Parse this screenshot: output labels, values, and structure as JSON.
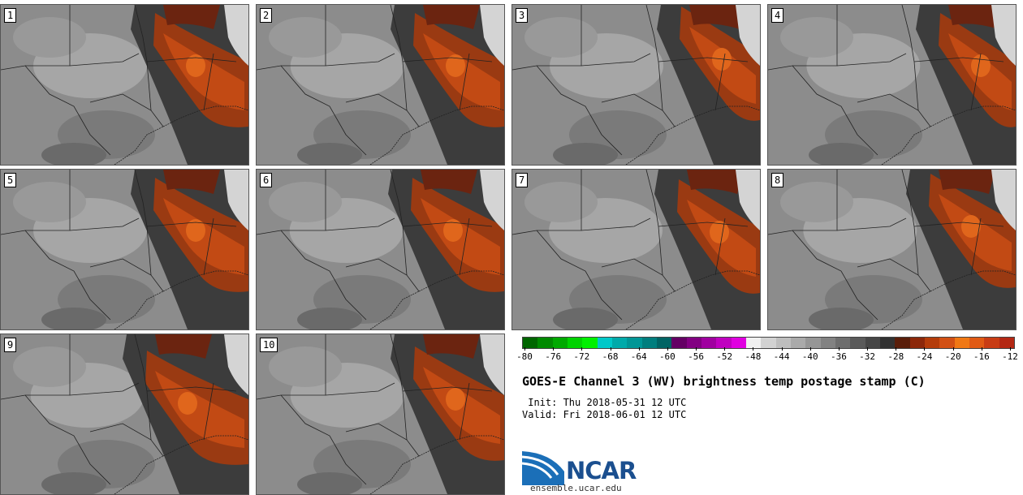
{
  "panels": [
    "1",
    "2",
    "3",
    "4",
    "5",
    "6",
    "7",
    "8",
    "9",
    "10"
  ],
  "colorbar": {
    "colors": [
      "#006600",
      "#008a00",
      "#00aa00",
      "#00d200",
      "#00f000",
      "#00c8c8",
      "#00aaaa",
      "#009696",
      "#007e7e",
      "#006464",
      "#640064",
      "#820082",
      "#a000a0",
      "#c000c0",
      "#e000e0",
      "#f0f0f0",
      "#d2d2d2",
      "#bebebe",
      "#aaaaaa",
      "#969696",
      "#828282",
      "#6e6e6e",
      "#5a5a5a",
      "#464646",
      "#323232",
      "#5a1e0a",
      "#8c280a",
      "#b43c0a",
      "#d25014",
      "#f07814",
      "#e05a14",
      "#c83c14",
      "#b42814"
    ],
    "tick_labels": [
      "-80",
      "-76",
      "-72",
      "-68",
      "-64",
      "-60",
      "-56",
      "-52",
      "-48",
      "-44",
      "-40",
      "-36",
      "-32",
      "-28",
      "-24",
      "-20",
      "-16",
      "-12"
    ]
  },
  "title": "GOES-E Channel 3 (WV) brightness temp postage stamp (C)",
  "init_line": " Init: Thu 2018-05-31 12 UTC",
  "valid_line": "Valid: Fri 2018-06-01 12 UTC",
  "logo_text": "NCAR",
  "website": "ensemble.ucar.edu"
}
